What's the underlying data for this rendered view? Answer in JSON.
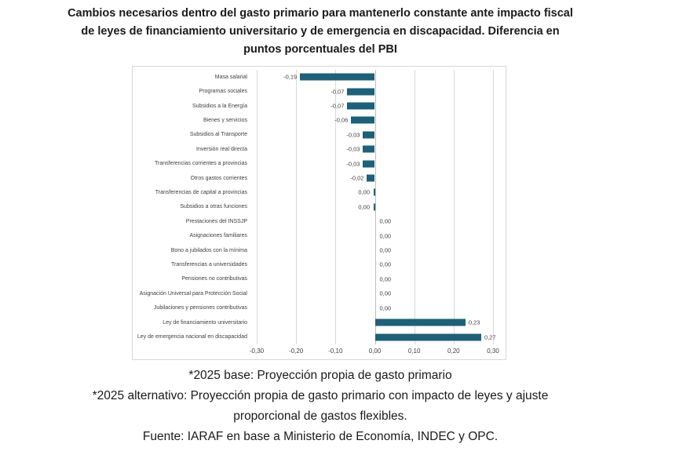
{
  "title": {
    "lines": [
      "Cambios necesarios dentro del gasto primario para mantenerlo constante ante impacto fiscal",
      "de leyes de financiamiento universitario y de emergencia en discapacidad. Diferencia en",
      "puntos porcentuales del PBI"
    ]
  },
  "footnotes": {
    "lines": [
      "*2025 base: Proyección propia de gasto primario",
      "*2025 alternativo: Proyección propia de gasto primario con impacto de leyes y ajuste",
      "proporcional de gastos flexibles.",
      "Fuente: IARAF en base a Ministerio de Economía, INDEC y OPC."
    ]
  },
  "colors": {
    "bar": "#1e6078",
    "gridline": "#d9d9d9",
    "zero_line": "#bdbdbd",
    "frame_border": "#d6d6d6",
    "axis_text": "#404040",
    "title_text": "#1a1a1a"
  },
  "chart_data": {
    "type": "bar",
    "orientation": "horizontal",
    "title": "Cambios necesarios dentro del gasto primario para mantenerlo constante ante impacto fiscal de leyes de financiamiento universitario y de emergencia en discapacidad. Diferencia en puntos porcentuales del PBI",
    "xlabel": "Diferencia en puntos porcentuales del PBI",
    "ylabel": "",
    "xlim": [
      -0.3,
      0.3
    ],
    "grid": true,
    "legend": false,
    "x_tick_labels": [
      "-0,30",
      "-0,20",
      "-0,10",
      "0,00",
      "0,10",
      "0,20",
      "0,30"
    ],
    "x_tick_values": [
      -0.3,
      -0.2,
      -0.1,
      0,
      0.1,
      0.2,
      0.3
    ],
    "categories": [
      "Masa salarial",
      "Programas sociales",
      "Subsidios a la Energía",
      "Bienes y servicios",
      "Subsidios al Transporte",
      "Inversión real directa",
      "Transferencias corrientes a provincias",
      "Otros gastos corrientes",
      "Transferencias de capital a provincias",
      "Subsidios a otras funciones",
      "Prestaciones del INSSJP",
      "Asignaciones familiares",
      "Bono a jubilados con la mínima",
      "Transferencias a universidades",
      "Pensiones no contributivas",
      "Asignación Universal para Protección Social",
      "Jubilaciones y pensiones contributivas",
      "Ley de financiamiento universitario",
      "Ley de emergencia nacional en discapacidad"
    ],
    "values": [
      -0.19,
      -0.07,
      -0.07,
      -0.06,
      -0.03,
      -0.03,
      -0.03,
      -0.02,
      0,
      0,
      0,
      0,
      0,
      0,
      0,
      0,
      0,
      0.23,
      0.27
    ],
    "data_labels": [
      "-0,19",
      "-0,07",
      "-0,07",
      "-0,06",
      "-0,03",
      "-0,03",
      "-0,03",
      "-0,02",
      "0,00",
      "0,00",
      "0,00",
      "0,00",
      "0,00",
      "0,00",
      "0,00",
      "0,00",
      "0,00",
      "0,23",
      "0,27"
    ],
    "data_label_sides": [
      "left",
      "left",
      "left",
      "left",
      "left",
      "left",
      "left",
      "left",
      "left",
      "left",
      "right",
      "right",
      "right",
      "right",
      "right",
      "right",
      "right",
      "right",
      "right"
    ]
  }
}
